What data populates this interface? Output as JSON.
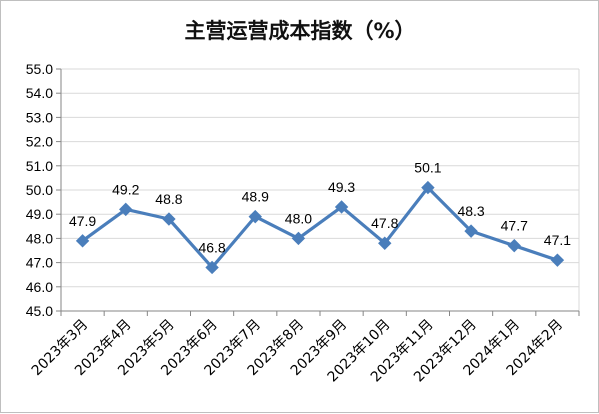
{
  "chart_data": {
    "type": "line",
    "title": "主营运营成本指数（%）",
    "categories": [
      "2023年3月",
      "2023年4月",
      "2023年5月",
      "2023年6月",
      "2023年7月",
      "2023年8月",
      "2023年9月",
      "2023年10月",
      "2023年11月",
      "2023年12月",
      "2024年1月",
      "2024年2月"
    ],
    "series": [
      {
        "values": [
          47.9,
          49.2,
          48.8,
          46.8,
          48.9,
          48.0,
          49.3,
          47.8,
          50.1,
          48.3,
          47.7,
          47.1
        ],
        "labels": [
          "47.9",
          "49.2",
          "48.8",
          "46.8",
          "48.9",
          "48.0",
          "49.3",
          "47.8",
          "50.1",
          "48.3",
          "47.7",
          "47.1"
        ],
        "color": "#4a7ebb"
      }
    ],
    "y_ticks": [
      "45.0",
      "46.0",
      "47.0",
      "48.0",
      "49.0",
      "50.0",
      "51.0",
      "52.0",
      "53.0",
      "54.0",
      "55.0"
    ],
    "ylim": [
      45,
      55
    ],
    "grid": true,
    "legend": "none",
    "colors": {
      "line": "#4a7ebb",
      "grid": "#d9d9d9",
      "axis": "#868686"
    }
  }
}
